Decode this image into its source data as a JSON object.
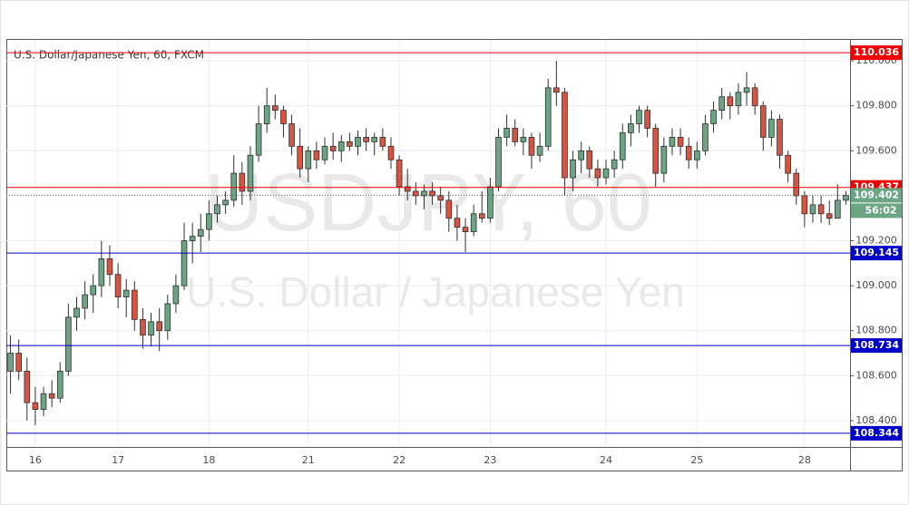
{
  "chart_data": {
    "type": "candlestick",
    "title": "U.S. Dollar/Japanese Yen, 60, FXCM",
    "watermark_symbol": "USDJPY, 60",
    "watermark_name": "U.S. Dollar / Japanese Yen",
    "countdown": "56:02",
    "up_color": "#6ba583",
    "down_color": "#d75442",
    "grid": true,
    "ylim": [
      108.283,
      110.093
    ],
    "yticks": [
      {
        "value": 108.4,
        "label": "108.400"
      },
      {
        "value": 108.6,
        "label": "108.600"
      },
      {
        "value": 108.8,
        "label": "108.800"
      },
      {
        "value": 109.0,
        "label": "109.000"
      },
      {
        "value": 109.2,
        "label": "109.200"
      },
      {
        "value": 109.4,
        "label": "109.400"
      },
      {
        "value": 109.6,
        "label": "109.600"
      },
      {
        "value": 109.8,
        "label": "109.800"
      },
      {
        "value": 110.0,
        "label": "110.000"
      }
    ],
    "levels": [
      {
        "value": 110.036,
        "color": "#f00000"
      },
      {
        "value": 109.437,
        "color": "#f00000"
      },
      {
        "value": 109.145,
        "color": "#0000c8"
      },
      {
        "value": 108.734,
        "color": "#0000c8"
      },
      {
        "value": 108.344,
        "color": "#0000c8"
      }
    ],
    "current_price": {
      "value": 109.402,
      "color": "#6ba583"
    },
    "categories": [
      null,
      null,
      null,
      "16",
      null,
      null,
      null,
      null,
      null,
      null,
      null,
      null,
      null,
      "17",
      null,
      null,
      null,
      null,
      null,
      null,
      null,
      null,
      null,
      null,
      "18",
      null,
      null,
      null,
      null,
      null,
      null,
      null,
      null,
      null,
      null,
      null,
      "21",
      null,
      null,
      null,
      null,
      null,
      null,
      null,
      null,
      null,
      null,
      "22",
      null,
      null,
      null,
      null,
      null,
      null,
      null,
      null,
      null,
      null,
      "23",
      null,
      null,
      null,
      null,
      null,
      null,
      null,
      null,
      null,
      null,
      null,
      null,
      null,
      "24",
      null,
      null,
      null,
      null,
      null,
      null,
      null,
      null,
      null,
      null,
      "25",
      null,
      null,
      null,
      null,
      null,
      null,
      null,
      null,
      null,
      null,
      null,
      null,
      "28",
      null,
      null,
      null,
      null,
      null
    ],
    "open": [
      108.62,
      108.7,
      108.62,
      108.48,
      108.45,
      108.52,
      108.5,
      108.62,
      108.86,
      108.9,
      108.96,
      109.0,
      109.12,
      109.05,
      108.95,
      108.98,
      108.85,
      108.78,
      108.84,
      108.8,
      108.92,
      109.0,
      109.2,
      109.22,
      109.25,
      109.32,
      109.36,
      109.38,
      109.5,
      109.42,
      109.58,
      109.72,
      109.8,
      109.78,
      109.72,
      109.62,
      109.52,
      109.6,
      109.56,
      109.62,
      109.6,
      109.64,
      109.62,
      109.66,
      109.64,
      109.66,
      109.62,
      109.56,
      109.44,
      109.42,
      109.4,
      109.42,
      109.4,
      109.38,
      109.3,
      109.26,
      109.24,
      109.32,
      109.3,
      109.44,
      109.66,
      109.7,
      109.64,
      109.66,
      109.58,
      109.62,
      109.88,
      109.86,
      109.48,
      109.56,
      109.6,
      109.52,
      109.48,
      109.52,
      109.56,
      109.68,
      109.72,
      109.78,
      109.7,
      109.5,
      109.62,
      109.66,
      109.62,
      109.56,
      109.6,
      109.72,
      109.78,
      109.84,
      109.8,
      109.86,
      109.88,
      109.8,
      109.66,
      109.74,
      109.58,
      109.5,
      109.4,
      109.32,
      109.36,
      109.32,
      109.3,
      109.38
    ],
    "high": [
      108.78,
      108.76,
      108.68,
      108.55,
      108.55,
      108.58,
      108.66,
      108.92,
      108.95,
      109.02,
      109.05,
      109.2,
      109.18,
      109.1,
      109.03,
      109.02,
      108.9,
      108.88,
      108.9,
      108.96,
      109.05,
      109.28,
      109.28,
      109.32,
      109.38,
      109.4,
      109.42,
      109.58,
      109.55,
      109.62,
      109.8,
      109.88,
      109.85,
      109.8,
      109.76,
      109.7,
      109.62,
      109.64,
      109.66,
      109.68,
      109.67,
      109.68,
      109.69,
      109.7,
      109.68,
      109.7,
      109.66,
      109.58,
      109.52,
      109.46,
      109.45,
      109.46,
      109.44,
      109.42,
      109.36,
      109.3,
      109.36,
      109.42,
      109.48,
      109.7,
      109.76,
      109.74,
      109.7,
      109.68,
      109.68,
      109.92,
      110.0,
      109.88,
      109.6,
      109.64,
      109.62,
      109.56,
      109.56,
      109.6,
      109.72,
      109.76,
      109.8,
      109.8,
      109.72,
      109.66,
      109.7,
      109.7,
      109.66,
      109.64,
      109.76,
      109.82,
      109.88,
      109.86,
      109.9,
      109.95,
      109.9,
      109.82,
      109.78,
      109.76,
      109.6,
      109.52,
      109.42,
      109.4,
      109.4,
      109.38,
      109.45,
      109.42
    ],
    "low": [
      108.52,
      108.58,
      108.4,
      108.38,
      108.42,
      108.46,
      108.48,
      108.6,
      108.8,
      108.85,
      108.88,
      108.95,
      109.0,
      108.9,
      108.86,
      108.8,
      108.72,
      108.73,
      108.71,
      108.76,
      108.88,
      108.98,
      109.1,
      109.15,
      109.2,
      109.28,
      109.32,
      109.35,
      109.36,
      109.38,
      109.55,
      109.68,
      109.74,
      109.66,
      109.58,
      109.48,
      109.46,
      109.52,
      109.54,
      109.56,
      109.55,
      109.6,
      109.58,
      109.6,
      109.58,
      109.6,
      109.52,
      109.4,
      109.38,
      109.36,
      109.34,
      109.36,
      109.32,
      109.24,
      109.2,
      109.15,
      109.22,
      109.28,
      109.28,
      109.42,
      109.62,
      109.62,
      109.58,
      109.52,
      109.55,
      109.6,
      109.8,
      109.4,
      109.42,
      109.5,
      109.48,
      109.44,
      109.45,
      109.48,
      109.52,
      109.62,
      109.68,
      109.66,
      109.44,
      109.46,
      109.58,
      109.58,
      109.52,
      109.52,
      109.58,
      109.68,
      109.74,
      109.74,
      109.76,
      109.8,
      109.76,
      109.6,
      109.62,
      109.52,
      109.46,
      109.36,
      109.26,
      109.28,
      109.28,
      109.27,
      109.3,
      109.36
    ],
    "close": [
      108.7,
      108.62,
      108.48,
      108.45,
      108.52,
      108.5,
      108.62,
      108.86,
      108.9,
      108.96,
      109.0,
      109.12,
      109.05,
      108.95,
      108.98,
      108.85,
      108.78,
      108.84,
      108.8,
      108.92,
      109.0,
      109.2,
      109.22,
      109.25,
      109.32,
      109.36,
      109.38,
      109.5,
      109.42,
      109.58,
      109.72,
      109.8,
      109.78,
      109.72,
      109.62,
      109.52,
      109.6,
      109.56,
      109.62,
      109.6,
      109.64,
      109.62,
      109.66,
      109.64,
      109.66,
      109.62,
      109.56,
      109.44,
      109.42,
      109.4,
      109.42,
      109.4,
      109.38,
      109.3,
      109.26,
      109.24,
      109.32,
      109.3,
      109.44,
      109.66,
      109.7,
      109.64,
      109.66,
      109.58,
      109.62,
      109.88,
      109.86,
      109.48,
      109.56,
      109.6,
      109.52,
      109.48,
      109.52,
      109.56,
      109.68,
      109.72,
      109.78,
      109.7,
      109.5,
      109.62,
      109.66,
      109.62,
      109.56,
      109.6,
      109.72,
      109.78,
      109.84,
      109.8,
      109.86,
      109.88,
      109.8,
      109.66,
      109.74,
      109.58,
      109.5,
      109.4,
      109.32,
      109.36,
      109.32,
      109.3,
      109.38,
      109.402
    ]
  }
}
